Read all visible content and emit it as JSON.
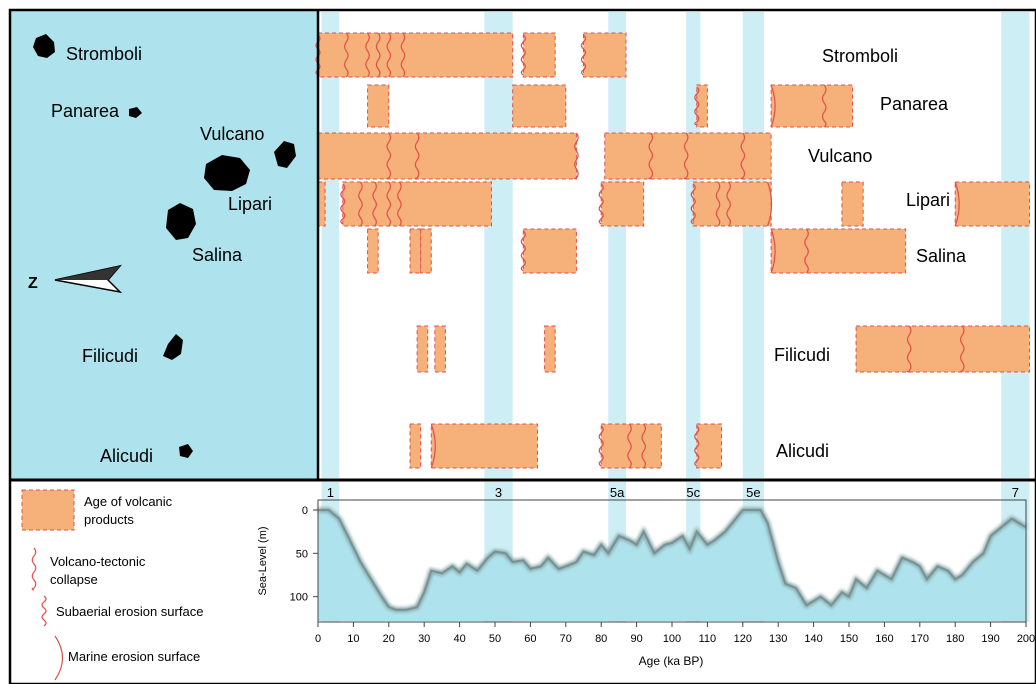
{
  "colors": {
    "sea": "#aee3ee",
    "mis_band": "#cdeef5",
    "age_box_fill": "#f6b07a",
    "age_box_edge": "#e0504a",
    "island": "#000000",
    "sealevel_line": "#8aa7a8"
  },
  "map": {
    "north_label": "Z",
    "islands": [
      {
        "name": "Stromboli",
        "label": "Stromboli"
      },
      {
        "name": "Panarea",
        "label": "Panarea"
      },
      {
        "name": "Vulcano",
        "label": "Vulcano"
      },
      {
        "name": "Lipari",
        "label": "Lipari"
      },
      {
        "name": "Salina",
        "label": "Salina"
      },
      {
        "name": "Filicudi",
        "label": "Filicudi"
      },
      {
        "name": "Alicudi",
        "label": "Alicudi"
      }
    ]
  },
  "legend": {
    "items": [
      {
        "id": "age",
        "label": "Age of volcanic products"
      },
      {
        "id": "vt",
        "label": "Volcano-tectonic collapse"
      },
      {
        "id": "sub",
        "label": "Subaerial erosion surface"
      },
      {
        "id": "mar",
        "label": "Marine erosion surface"
      }
    ]
  },
  "chart_data": [
    {
      "type": "range-bar",
      "x_unit": "ka BP",
      "xlim": [
        0,
        200
      ],
      "mis_bands": [
        {
          "label": "1",
          "from": 1,
          "to": 6
        },
        {
          "label": "3",
          "from": 47,
          "to": 55
        },
        {
          "label": "5a",
          "from": 82,
          "to": 87
        },
        {
          "label": "5c",
          "from": 104,
          "to": 108
        },
        {
          "label": "5e",
          "from": 120,
          "to": 126
        },
        {
          "label": "7",
          "from": 193,
          "to": 201
        }
      ],
      "islands": [
        {
          "name": "Stromboli",
          "label": "Stromboli",
          "bars": [
            {
              "from": 0,
              "to": 55,
              "marks": [
                {
                  "at": 0,
                  "kind": "sub"
                },
                {
                  "at": 8,
                  "kind": "vt"
                },
                {
                  "at": 14,
                  "kind": "vt"
                },
                {
                  "at": 17,
                  "kind": "vt"
                },
                {
                  "at": 20,
                  "kind": "vt"
                },
                {
                  "at": 24,
                  "kind": "vt"
                }
              ]
            },
            {
              "from": 58,
              "to": 67,
              "marks": [
                {
                  "at": 58,
                  "kind": "sub"
                }
              ]
            },
            {
              "from": 75,
              "to": 87,
              "marks": [
                {
                  "at": 75,
                  "kind": "sub"
                }
              ]
            }
          ]
        },
        {
          "name": "Panarea",
          "label": "Panarea",
          "bars": [
            {
              "from": 14,
              "to": 20,
              "marks": []
            },
            {
              "from": 55,
              "to": 70,
              "marks": []
            },
            {
              "from": 107,
              "to": 110,
              "marks": [
                {
                  "at": 107,
                  "kind": "sub"
                }
              ]
            },
            {
              "from": 128,
              "to": 151,
              "marks": [
                {
                  "at": 128,
                  "kind": "mar"
                },
                {
                  "at": 143,
                  "kind": "vt"
                }
              ]
            }
          ]
        },
        {
          "name": "Vulcano",
          "label": "Vulcano",
          "bars": [
            {
              "from": 0,
              "to": 73,
              "marks": [
                {
                  "at": 20,
                  "kind": "vt"
                },
                {
                  "at": 28,
                  "kind": "vt"
                },
                {
                  "at": 73,
                  "kind": "vt"
                }
              ]
            },
            {
              "from": 81,
              "to": 128,
              "marks": [
                {
                  "at": 94,
                  "kind": "vt"
                },
                {
                  "at": 104,
                  "kind": "vt"
                },
                {
                  "at": 120,
                  "kind": "vt"
                }
              ]
            }
          ]
        },
        {
          "name": "Lipari",
          "label": "Lipari",
          "bars": [
            {
              "from": 0,
              "to": 2,
              "marks": []
            },
            {
              "from": 7,
              "to": 49,
              "marks": [
                {
                  "at": 7,
                  "kind": "sub"
                },
                {
                  "at": 12,
                  "kind": "vt"
                },
                {
                  "at": 16,
                  "kind": "vt"
                },
                {
                  "at": 20,
                  "kind": "vt"
                },
                {
                  "at": 23,
                  "kind": "vt"
                }
              ]
            },
            {
              "from": 80,
              "to": 92,
              "marks": [
                {
                  "at": 80,
                  "kind": "sub"
                }
              ]
            },
            {
              "from": 106,
              "to": 128,
              "marks": [
                {
                  "at": 106,
                  "kind": "sub"
                },
                {
                  "at": 113,
                  "kind": "vt"
                },
                {
                  "at": 116,
                  "kind": "vt"
                },
                {
                  "at": 127,
                  "kind": "mar"
                }
              ]
            },
            {
              "from": 148,
              "to": 154,
              "marks": []
            },
            {
              "from": 180,
              "to": 201,
              "marks": [
                {
                  "at": 180,
                  "kind": "mar"
                }
              ]
            }
          ]
        },
        {
          "name": "Salina",
          "label": "Salina",
          "bars": [
            {
              "from": 14,
              "to": 17,
              "marks": []
            },
            {
              "from": 26,
              "to": 29,
              "marks": []
            },
            {
              "from": 29,
              "to": 32,
              "marks": []
            },
            {
              "from": 58,
              "to": 73,
              "marks": [
                {
                  "at": 58,
                  "kind": "sub"
                }
              ]
            },
            {
              "from": 128,
              "to": 166,
              "marks": [
                {
                  "at": 128,
                  "kind": "mar"
                },
                {
                  "at": 138,
                  "kind": "vt"
                }
              ]
            }
          ]
        },
        {
          "name": "Filicudi",
          "label": "Filicudi",
          "bars": [
            {
              "from": 28,
              "to": 31,
              "marks": []
            },
            {
              "from": 33,
              "to": 36,
              "marks": []
            },
            {
              "from": 64,
              "to": 67,
              "marks": []
            },
            {
              "from": 152,
              "to": 201,
              "marks": [
                {
                  "at": 167,
                  "kind": "vt"
                },
                {
                  "at": 182,
                  "kind": "vt"
                }
              ]
            }
          ]
        },
        {
          "name": "Alicudi",
          "label": "Alicudi",
          "bars": [
            {
              "from": 26,
              "to": 29,
              "marks": []
            },
            {
              "from": 32,
              "to": 62,
              "marks": [
                {
                  "at": 32,
                  "kind": "mar"
                }
              ]
            },
            {
              "from": 80,
              "to": 97,
              "marks": [
                {
                  "at": 80,
                  "kind": "sub"
                },
                {
                  "at": 88,
                  "kind": "vt"
                },
                {
                  "at": 92,
                  "kind": "vt"
                }
              ]
            },
            {
              "from": 107,
              "to": 114,
              "marks": [
                {
                  "at": 107,
                  "kind": "sub"
                }
              ]
            }
          ]
        }
      ]
    },
    {
      "type": "area",
      "xlabel": "Age (ka BP)",
      "ylabel": "Sea-Level (m)",
      "xlim": [
        0,
        200
      ],
      "ylim": [
        0,
        120
      ],
      "y_inverted": true,
      "xticks": [
        0,
        10,
        20,
        30,
        40,
        50,
        60,
        70,
        80,
        90,
        100,
        110,
        120,
        130,
        140,
        150,
        160,
        170,
        180,
        190,
        200
      ],
      "yticks": [
        0,
        50,
        100
      ],
      "x": [
        0,
        3,
        6,
        9,
        12,
        15,
        18,
        20,
        22,
        25,
        28,
        30,
        32,
        35,
        38,
        40,
        42,
        45,
        48,
        50,
        53,
        55,
        58,
        60,
        63,
        65,
        68,
        70,
        73,
        75,
        78,
        80,
        82,
        85,
        88,
        90,
        92,
        95,
        98,
        100,
        103,
        105,
        107,
        110,
        112,
        115,
        118,
        120,
        122,
        125,
        127,
        130,
        132,
        135,
        138,
        140,
        142,
        145,
        148,
        150,
        152,
        155,
        158,
        160,
        162,
        165,
        168,
        170,
        172,
        175,
        178,
        180,
        182,
        185,
        188,
        190,
        193,
        196,
        198,
        200
      ],
      "y": [
        0,
        0,
        10,
        35,
        60,
        80,
        100,
        112,
        115,
        115,
        112,
        95,
        70,
        73,
        65,
        72,
        62,
        70,
        55,
        48,
        50,
        60,
        58,
        68,
        65,
        55,
        68,
        65,
        60,
        48,
        52,
        40,
        50,
        30,
        35,
        40,
        25,
        50,
        40,
        38,
        30,
        45,
        25,
        40,
        35,
        25,
        10,
        0,
        0,
        0,
        15,
        60,
        85,
        90,
        110,
        105,
        100,
        110,
        95,
        100,
        80,
        90,
        70,
        75,
        80,
        55,
        60,
        65,
        80,
        65,
        70,
        80,
        75,
        60,
        50,
        30,
        20,
        10,
        15,
        20
      ]
    }
  ]
}
